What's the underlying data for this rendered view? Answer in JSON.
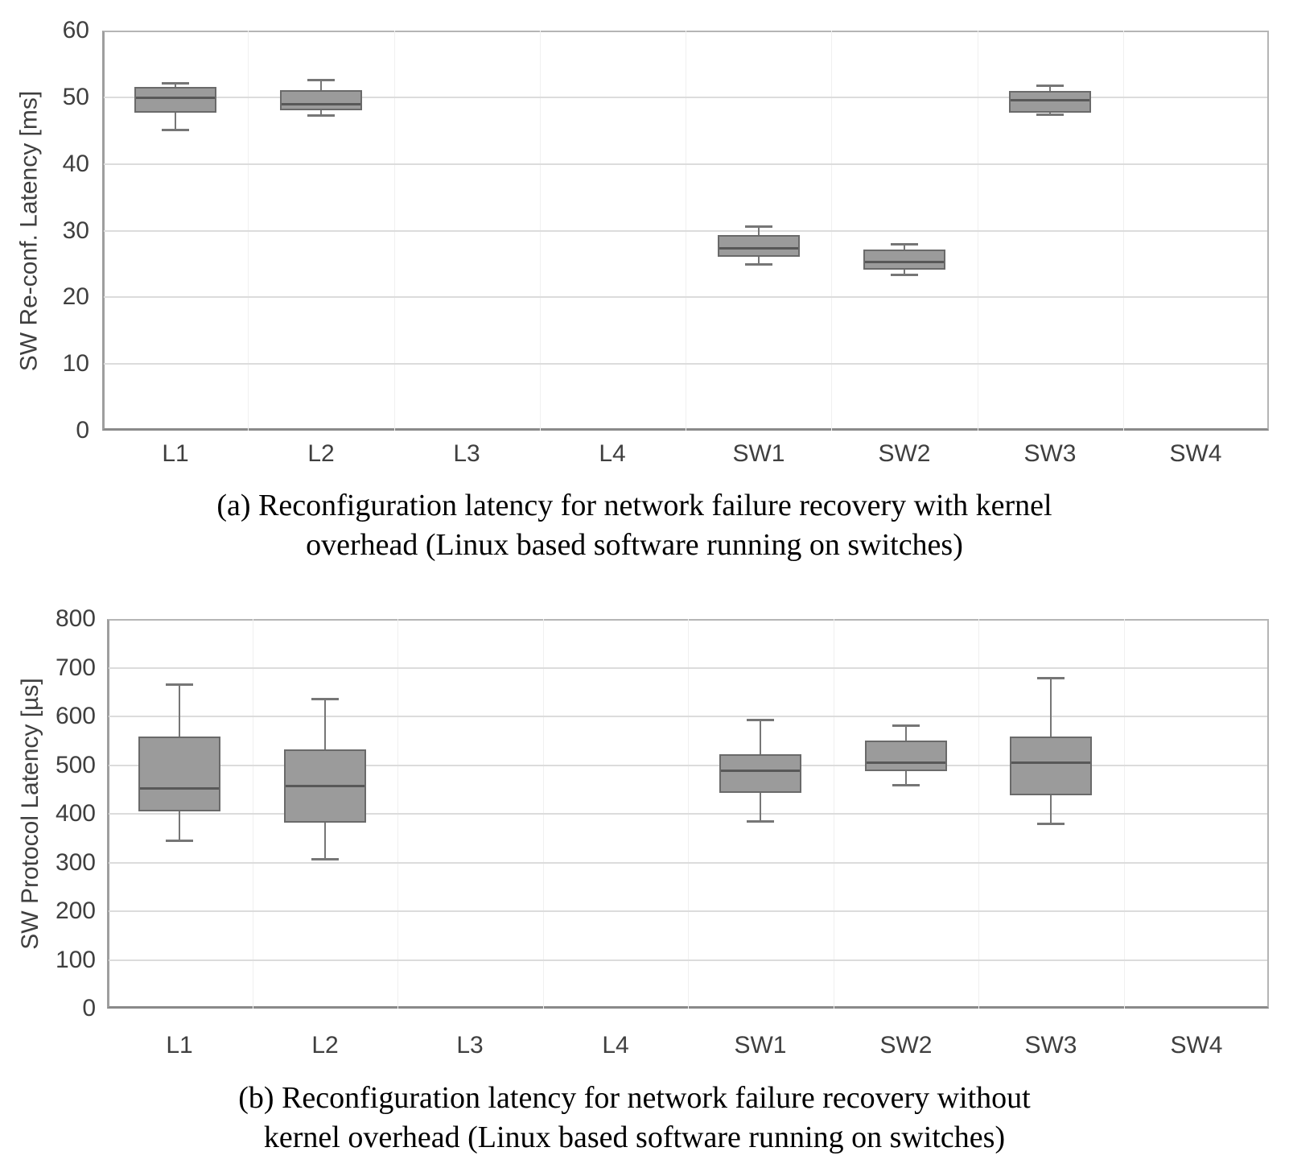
{
  "captions": {
    "a": {
      "line1": "(a) Reconfiguration latency for network failure recovery with kernel",
      "line2": "overhead (Linux based software running on switches)"
    },
    "b": {
      "line1": "(b) Reconfiguration latency for network failure recovery without",
      "line2": "kernel overhead (Linux based software running on switches)"
    }
  },
  "colors": {
    "box_fill": "#9b9b9b",
    "box_border": "#6a6a6a",
    "median_line": "#585858",
    "whisker": "#767676",
    "gridline_h": "#dcdcdc",
    "gridline_v": "#f0f0f0",
    "tick_text": "#3f3f3f",
    "axis_border": "#8a8a8a"
  },
  "chart_data": [
    {
      "id": "a",
      "type": "boxplot",
      "ylabel": "SW Re-conf. Latency [ms]",
      "ylim": [
        0,
        60
      ],
      "yticks": [
        0,
        10,
        20,
        30,
        40,
        50,
        60
      ],
      "grid": "horizontal-major-on",
      "legend": "none",
      "categories": [
        "L1",
        "L2",
        "L3",
        "L4",
        "SW1",
        "SW2",
        "SW3",
        "SW4"
      ],
      "boxes": [
        {
          "category": "L1",
          "whisker_low": 45.2,
          "q1": 47.6,
          "median": 50.0,
          "q3": 51.5,
          "whisker_high": 52.2
        },
        {
          "category": "L2",
          "whisker_low": 47.3,
          "q1": 48.1,
          "median": 49.0,
          "q3": 51.1,
          "whisker_high": 52.6
        },
        {
          "category": "SW1",
          "whisker_low": 25.0,
          "q1": 26.1,
          "median": 27.4,
          "q3": 29.3,
          "whisker_high": 30.7
        },
        {
          "category": "SW2",
          "whisker_low": 23.4,
          "q1": 24.2,
          "median": 25.4,
          "q3": 27.2,
          "whisker_high": 28.0
        },
        {
          "category": "SW3",
          "whisker_low": 47.4,
          "q1": 47.8,
          "median": 49.6,
          "q3": 51.0,
          "whisker_high": 51.8
        }
      ],
      "no_data_categories": [
        "L3",
        "L4",
        "SW4"
      ]
    },
    {
      "id": "b",
      "type": "boxplot",
      "ylabel": "SW Protocol Latency [µs]",
      "ylim": [
        0,
        800
      ],
      "yticks": [
        0,
        100,
        200,
        300,
        400,
        500,
        600,
        700,
        800
      ],
      "grid": "horizontal-major-on",
      "legend": "none",
      "categories": [
        "L1",
        "L2",
        "L3",
        "L4",
        "SW1",
        "SW2",
        "SW3",
        "SW4"
      ],
      "boxes": [
        {
          "category": "L1",
          "whisker_low": 345,
          "q1": 405,
          "median": 453,
          "q3": 559,
          "whisker_high": 666
        },
        {
          "category": "L2",
          "whisker_low": 307,
          "q1": 381,
          "median": 458,
          "q3": 532,
          "whisker_high": 637
        },
        {
          "category": "SW1",
          "whisker_low": 385,
          "q1": 443,
          "median": 489,
          "q3": 523,
          "whisker_high": 594
        },
        {
          "category": "SW2",
          "whisker_low": 460,
          "q1": 489,
          "median": 505,
          "q3": 551,
          "whisker_high": 582
        },
        {
          "category": "SW3",
          "whisker_low": 380,
          "q1": 438,
          "median": 505,
          "q3": 559,
          "whisker_high": 680
        }
      ],
      "no_data_categories": [
        "L3",
        "L4",
        "SW4"
      ]
    }
  ]
}
